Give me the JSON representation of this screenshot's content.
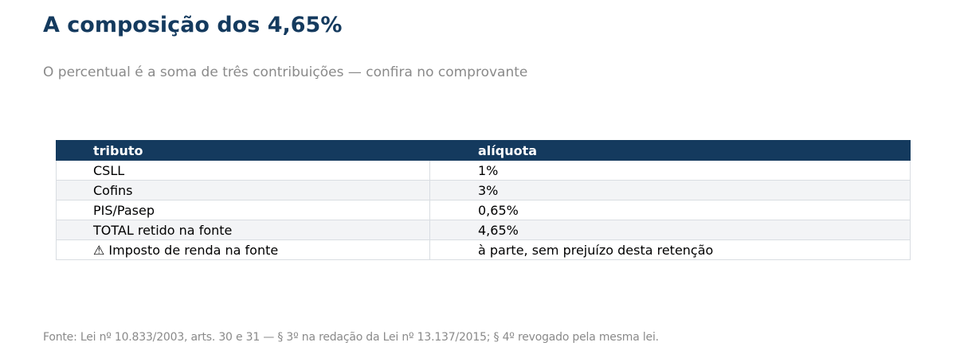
{
  "header": {
    "title": "A composição dos 4,65%",
    "subtitle": "O percentual é a soma de três contribuições — confira no comprovante"
  },
  "chart_data": {
    "type": "table",
    "columns": [
      "tributo",
      "alíquota"
    ],
    "rows": [
      [
        "CSLL",
        "1%"
      ],
      [
        "Cofins",
        "3%"
      ],
      [
        "PIS/Pasep",
        "0,65%"
      ],
      [
        "TOTAL retido na fonte",
        "4,65%"
      ],
      [
        "⚠ Imposto de renda na fonte",
        "à parte, sem prejuízo desta retenção"
      ]
    ]
  },
  "footer": {
    "source": "Fonte: Lei nº 10.833/2003, arts. 30 e 31 — § 3º na redação da Lei nº 13.137/2015; § 4º revogado pela mesma lei."
  },
  "colors": {
    "header_bg": "#143a5e",
    "title": "#143a5e",
    "stripe": "#f3f4f6",
    "muted_text": "#8a8a8a"
  }
}
